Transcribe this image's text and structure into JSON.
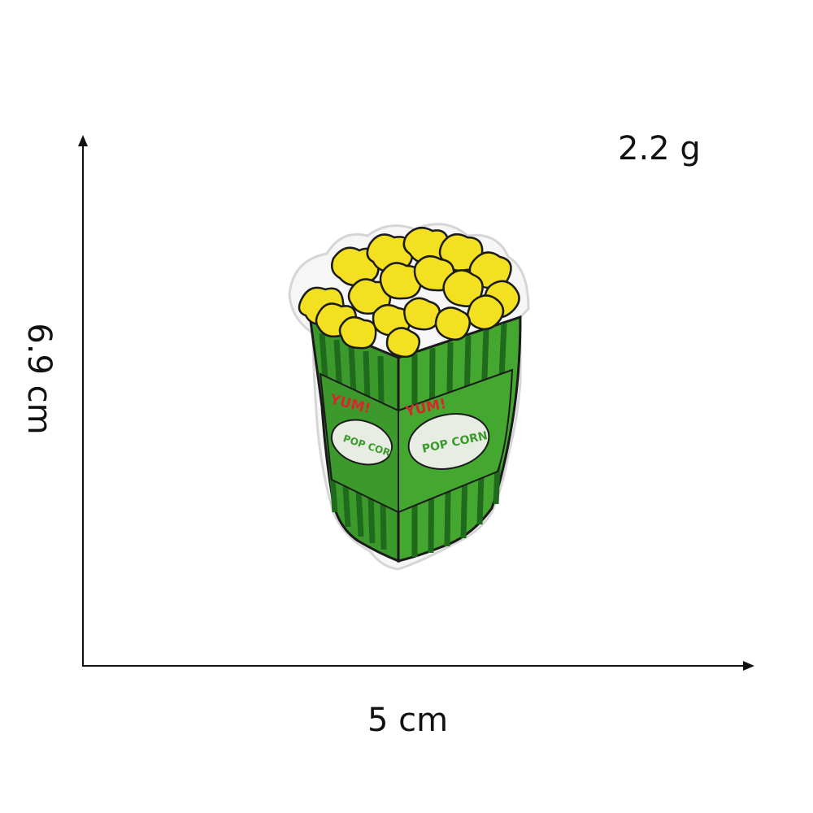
{
  "dimensions": {
    "weight": "2.2 g",
    "width": "5 cm",
    "height": "6.9 cm"
  },
  "patch": {
    "subject": "popcorn-box-patch",
    "text_left": "YUM!",
    "text_right": "YUM!",
    "label_left": "POP CORN",
    "label_right": "POP CORN"
  },
  "colors": {
    "popcorn": "#f2e021",
    "popcorn_shadow": "#c9b20e",
    "box_green": "#3c9a2c",
    "box_stripe": "#1f6a1c",
    "outline": "#1b1b1b",
    "text_red": "#d8262c",
    "label_fill": "#e8ede4",
    "label_text": "#3c9a2c",
    "patch_border": "#f4f4f4",
    "axis": "#111111"
  }
}
